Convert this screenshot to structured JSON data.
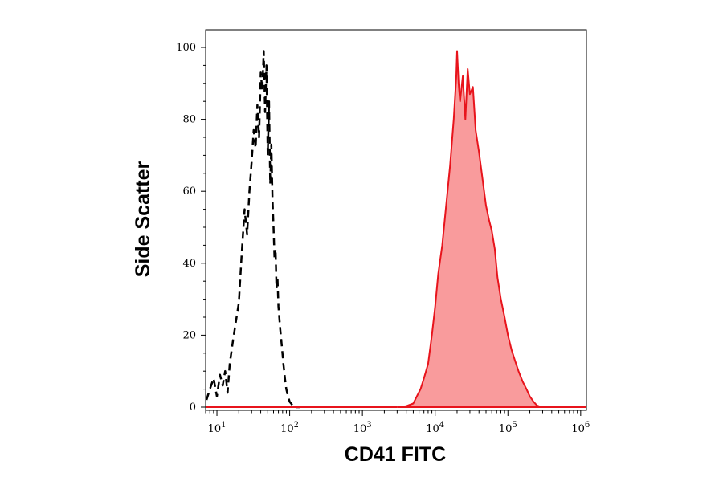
{
  "chart_data": {
    "type": "area",
    "xlabel": "CD41 FITC",
    "ylabel": "Side Scatter",
    "x_scale": "log",
    "xlim": [
      7,
      1200000
    ],
    "ylim": [
      0,
      100
    ],
    "x_ticks": [
      {
        "value": 10,
        "base": "10",
        "exp": "1"
      },
      {
        "value": 100,
        "base": "10",
        "exp": "2"
      },
      {
        "value": 1000,
        "base": "10",
        "exp": "3"
      },
      {
        "value": 10000,
        "base": "10",
        "exp": "4"
      },
      {
        "value": 100000,
        "base": "10",
        "exp": "5"
      },
      {
        "value": 1000000,
        "base": "10",
        "exp": "6"
      }
    ],
    "y_ticks": [
      "0",
      "20",
      "40",
      "60",
      "80",
      "100"
    ],
    "grid": false,
    "series": [
      {
        "style": "dashed-outline",
        "color": "#000000",
        "x": [
          7.2,
          8,
          9,
          10,
          11,
          12,
          13,
          14,
          15,
          16.5,
          18,
          20,
          22,
          24,
          26,
          28,
          30,
          32,
          34,
          36,
          38,
          40,
          42,
          44,
          46,
          48,
          50,
          52,
          54,
          56,
          58,
          60,
          62,
          64,
          66,
          68,
          70,
          74,
          78,
          82,
          86,
          90,
          95,
          100,
          110,
          120,
          140
        ],
        "y": [
          2,
          5,
          8,
          3,
          9,
          6,
          10,
          4,
          12,
          18,
          23,
          29,
          43,
          55,
          48,
          60,
          68,
          77,
          72,
          84,
          75,
          93,
          88,
          99,
          82,
          95,
          70,
          85,
          62,
          73,
          58,
          50,
          41,
          44,
          33,
          36,
          28,
          22,
          17,
          12,
          8,
          5,
          3,
          1.5,
          0.5,
          0,
          0
        ]
      },
      {
        "style": "filled",
        "color": "#e8141c",
        "fill": "#f99b9c",
        "x": [
          3000,
          4000,
          5000,
          5600,
          6300,
          7000,
          8000,
          9000,
          10000,
          11000,
          12500,
          14000,
          16000,
          18000,
          19500,
          20000,
          21000,
          22000,
          24000,
          26000,
          28000,
          30000,
          33000,
          36000,
          40000,
          45000,
          50000,
          55000,
          60000,
          66000,
          72000,
          80000,
          90000,
          100000,
          112000,
          125000,
          140000,
          160000,
          180000,
          200000,
          225000,
          250000,
          280000,
          320000
        ],
        "y": [
          0,
          0.3,
          1,
          3,
          5,
          8,
          12,
          20,
          28,
          37,
          45,
          55,
          67,
          80,
          92,
          99,
          90,
          85,
          92,
          80,
          94,
          87,
          89,
          77,
          71,
          63,
          56,
          52,
          49,
          44,
          36,
          30,
          25,
          20,
          16,
          13,
          10,
          7,
          5,
          3,
          1.5,
          0.5,
          0.1,
          0
        ]
      }
    ]
  }
}
